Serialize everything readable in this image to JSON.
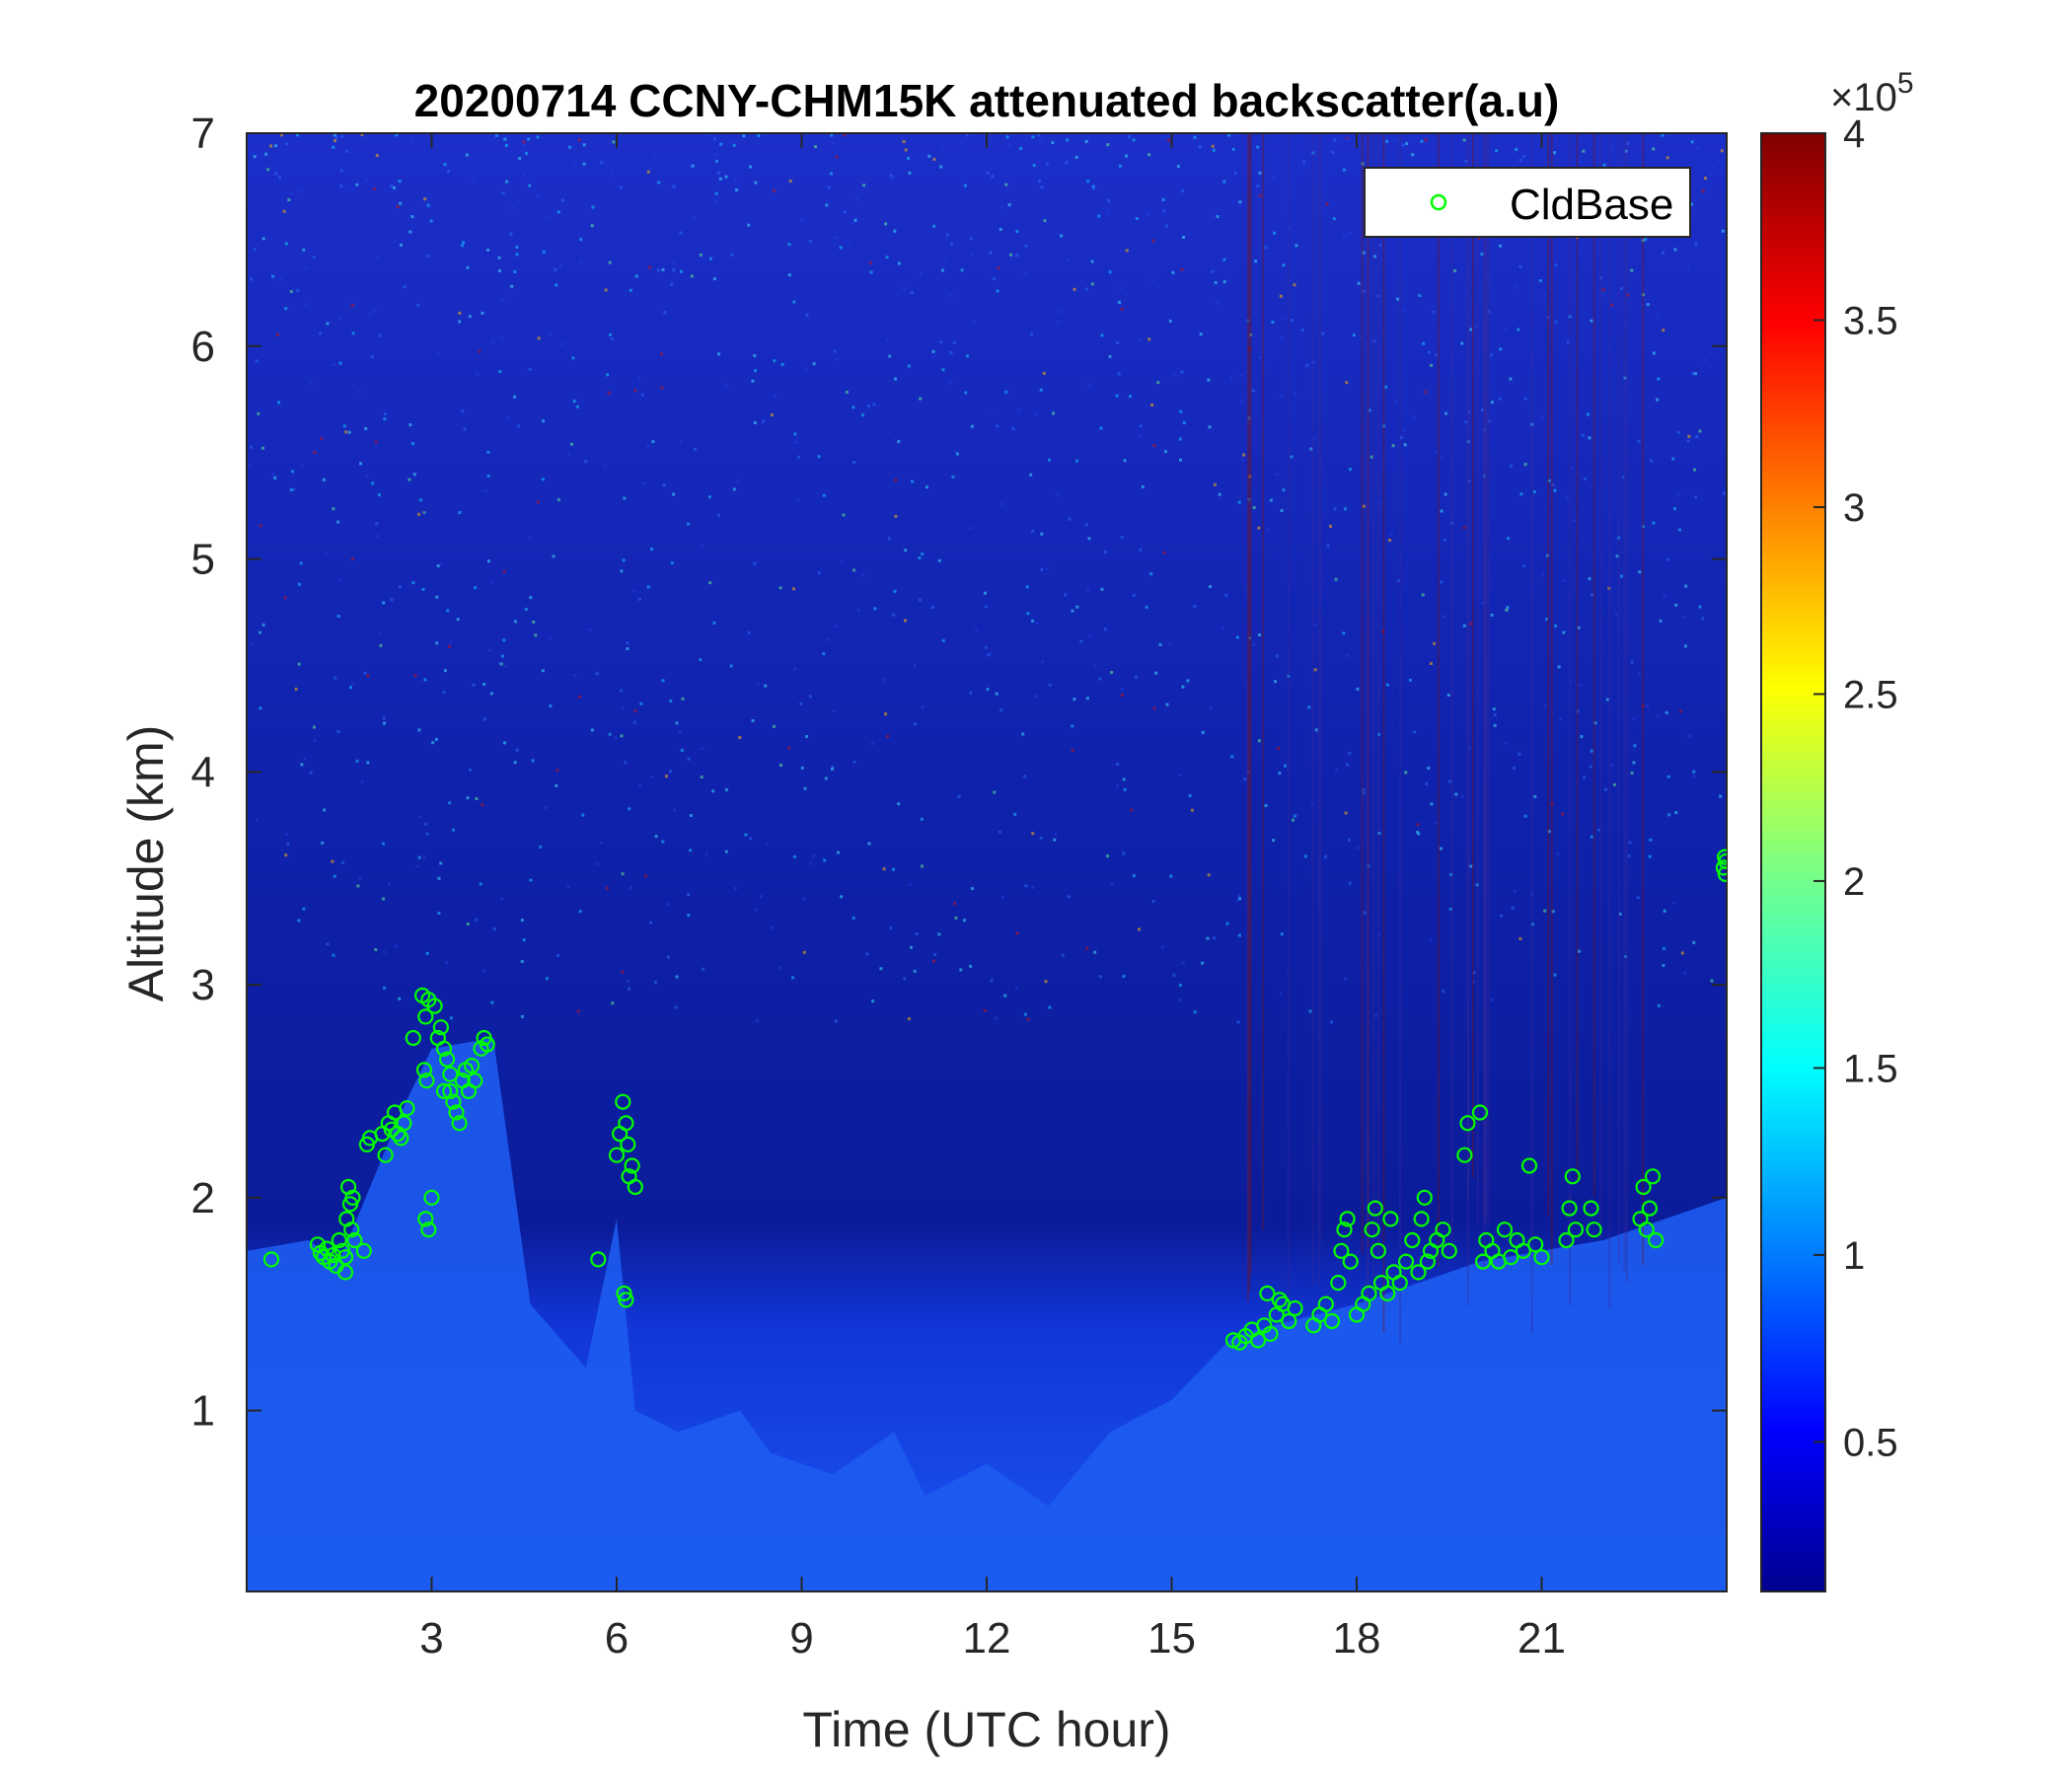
{
  "chart_data": {
    "type": "heatmap",
    "title": "20200714 CCNY-CHM15K attenuated backscatter(a.u)",
    "xlabel": "Time (UTC hour)",
    "ylabel": "Altitude (km)",
    "xlim": [
      0,
      24
    ],
    "ylim": [
      0.15,
      7
    ],
    "xticks": [
      3,
      6,
      9,
      12,
      15,
      18,
      21
    ],
    "yticks": [
      1,
      2,
      3,
      4,
      5,
      6,
      7
    ],
    "colorbar": {
      "colormap": "jet",
      "range": [
        0.1,
        4
      ],
      "ticks": [
        "0.5",
        "1",
        "1.5",
        "2",
        "2.5",
        "3",
        "3.5",
        "4"
      ],
      "tick_values": [
        0.5,
        1,
        1.5,
        2,
        2.5,
        3,
        3.5,
        4
      ],
      "exponent_label": "×10^5"
    },
    "legend": {
      "position": "top-right",
      "entries": [
        "CldBase"
      ]
    },
    "series": [
      {
        "name": "CldBase",
        "marker": "circle",
        "color": "#00ff00",
        "points": [
          [
            0.4,
            1.71
          ],
          [
            1.15,
            1.78
          ],
          [
            1.2,
            1.74
          ],
          [
            1.25,
            1.72
          ],
          [
            1.3,
            1.76
          ],
          [
            1.35,
            1.7
          ],
          [
            1.4,
            1.73
          ],
          [
            1.45,
            1.68
          ],
          [
            1.5,
            1.8
          ],
          [
            1.55,
            1.75
          ],
          [
            1.6,
            1.72
          ],
          [
            1.62,
            1.9
          ],
          [
            1.65,
            2.05
          ],
          [
            1.7,
            1.85
          ],
          [
            1.75,
            1.8
          ],
          [
            1.68,
            1.97
          ],
          [
            1.72,
            2.0
          ],
          [
            1.6,
            1.65
          ],
          [
            1.9,
            1.75
          ],
          [
            1.95,
            2.25
          ],
          [
            2.0,
            2.28
          ],
          [
            2.2,
            2.3
          ],
          [
            2.25,
            2.2
          ],
          [
            2.3,
            2.35
          ],
          [
            2.35,
            2.32
          ],
          [
            2.4,
            2.4
          ],
          [
            2.45,
            2.3
          ],
          [
            2.5,
            2.28
          ],
          [
            2.55,
            2.35
          ],
          [
            2.6,
            2.42
          ],
          [
            2.7,
            2.75
          ],
          [
            2.85,
            2.95
          ],
          [
            2.9,
            2.85
          ],
          [
            2.95,
            2.93
          ],
          [
            2.88,
            2.6
          ],
          [
            2.92,
            2.55
          ],
          [
            2.9,
            1.9
          ],
          [
            2.95,
            1.85
          ],
          [
            3.0,
            2.0
          ],
          [
            3.05,
            2.9
          ],
          [
            3.1,
            2.75
          ],
          [
            3.15,
            2.8
          ],
          [
            3.2,
            2.7
          ],
          [
            3.25,
            2.65
          ],
          [
            3.3,
            2.5
          ],
          [
            3.35,
            2.45
          ],
          [
            3.4,
            2.4
          ],
          [
            3.45,
            2.35
          ],
          [
            3.5,
            2.55
          ],
          [
            3.55,
            2.6
          ],
          [
            3.6,
            2.5
          ],
          [
            3.65,
            2.62
          ],
          [
            3.7,
            2.55
          ],
          [
            3.8,
            2.7
          ],
          [
            3.85,
            2.75
          ],
          [
            3.9,
            2.72
          ],
          [
            3.2,
            2.5
          ],
          [
            3.3,
            2.58
          ],
          [
            5.7,
            1.71
          ],
          [
            6.0,
            2.2
          ],
          [
            6.05,
            2.3
          ],
          [
            6.1,
            2.45
          ],
          [
            6.15,
            2.35
          ],
          [
            6.2,
            2.1
          ],
          [
            6.25,
            2.15
          ],
          [
            6.3,
            2.05
          ],
          [
            6.18,
            2.25
          ],
          [
            6.12,
            1.55
          ],
          [
            6.15,
            1.52
          ],
          [
            16.0,
            1.33
          ],
          [
            16.1,
            1.32
          ],
          [
            16.2,
            1.35
          ],
          [
            16.3,
            1.38
          ],
          [
            16.4,
            1.33
          ],
          [
            16.5,
            1.4
          ],
          [
            16.6,
            1.36
          ],
          [
            16.7,
            1.45
          ],
          [
            16.8,
            1.5
          ],
          [
            16.9,
            1.42
          ],
          [
            17.0,
            1.48
          ],
          [
            16.55,
            1.55
          ],
          [
            16.75,
            1.52
          ],
          [
            17.3,
            1.4
          ],
          [
            17.4,
            1.45
          ],
          [
            17.5,
            1.5
          ],
          [
            17.6,
            1.42
          ],
          [
            17.7,
            1.6
          ],
          [
            17.75,
            1.75
          ],
          [
            17.8,
            1.85
          ],
          [
            17.85,
            1.9
          ],
          [
            17.9,
            1.7
          ],
          [
            18.0,
            1.45
          ],
          [
            18.1,
            1.5
          ],
          [
            18.2,
            1.55
          ],
          [
            18.25,
            1.85
          ],
          [
            18.3,
            1.95
          ],
          [
            18.35,
            1.75
          ],
          [
            18.4,
            1.6
          ],
          [
            18.5,
            1.55
          ],
          [
            18.55,
            1.9
          ],
          [
            18.6,
            1.65
          ],
          [
            18.7,
            1.6
          ],
          [
            18.8,
            1.7
          ],
          [
            18.9,
            1.8
          ],
          [
            19.0,
            1.65
          ],
          [
            19.05,
            1.9
          ],
          [
            19.1,
            2.0
          ],
          [
            19.15,
            1.7
          ],
          [
            19.2,
            1.75
          ],
          [
            19.3,
            1.8
          ],
          [
            19.4,
            1.85
          ],
          [
            19.5,
            1.75
          ],
          [
            19.75,
            2.2
          ],
          [
            19.8,
            2.35
          ],
          [
            20.0,
            2.4
          ],
          [
            20.05,
            1.7
          ],
          [
            20.1,
            1.8
          ],
          [
            20.2,
            1.75
          ],
          [
            20.3,
            1.7
          ],
          [
            20.4,
            1.85
          ],
          [
            20.5,
            1.72
          ],
          [
            20.6,
            1.8
          ],
          [
            20.7,
            1.75
          ],
          [
            20.8,
            2.15
          ],
          [
            20.9,
            1.78
          ],
          [
            21.0,
            1.72
          ],
          [
            21.4,
            1.8
          ],
          [
            21.45,
            1.95
          ],
          [
            21.5,
            2.1
          ],
          [
            21.55,
            1.85
          ],
          [
            21.8,
            1.95
          ],
          [
            21.85,
            1.85
          ],
          [
            22.6,
            1.9
          ],
          [
            22.65,
            2.05
          ],
          [
            22.7,
            1.85
          ],
          [
            22.75,
            1.95
          ],
          [
            22.8,
            2.1
          ],
          [
            22.85,
            1.8
          ],
          [
            23.95,
            3.55
          ],
          [
            23.97,
            3.6
          ],
          [
            23.98,
            3.52
          ],
          [
            23.99,
            3.58
          ]
        ]
      }
    ]
  }
}
